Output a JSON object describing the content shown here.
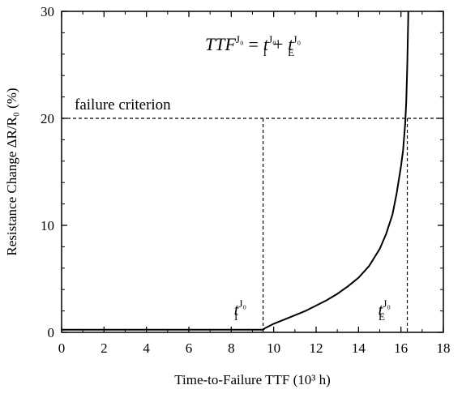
{
  "chart_data": {
    "type": "line",
    "xlabel": "Time-to-Failure TTF (10³ h)",
    "ylabel": "Resistance Change ΔR/R₀ (%)",
    "xlim": [
      0,
      18
    ],
    "ylim": [
      0,
      30
    ],
    "x_ticks": [
      0,
      2,
      4,
      6,
      8,
      10,
      12,
      14,
      16,
      18
    ],
    "y_ticks": [
      0,
      10,
      20,
      30
    ],
    "grid": false,
    "series": [
      {
        "x": [
          0,
          9.5,
          9.6,
          10.0,
          10.5,
          11.0,
          11.5,
          12.0,
          12.5,
          13.0,
          13.5,
          14.0,
          14.5,
          15.0,
          15.3,
          15.6,
          15.8,
          16.0,
          16.1,
          16.2,
          16.25,
          16.3,
          16.35
        ],
        "values": [
          0.25,
          0.25,
          0.4,
          0.8,
          1.2,
          1.6,
          2.0,
          2.5,
          3.0,
          3.6,
          4.3,
          5.1,
          6.2,
          7.8,
          9.2,
          11.0,
          13.0,
          15.5,
          17.0,
          19.5,
          21.5,
          25.0,
          30.0
        ]
      }
    ],
    "annotations": {
      "equation": {
        "lhs": "TTF",
        "sup": "J₀",
        "equals": "=",
        "t": "t",
        "sub_I": "I",
        "plus": "+",
        "sub_E": "E"
      },
      "criterion_label": "failure criterion",
      "criterion_value": 20,
      "t_I_x": 9.5,
      "t_E_x": 16.3,
      "t_I_label": {
        "base": "t",
        "sup": "J₀",
        "sub": "I"
      },
      "t_E_label": {
        "base": "t",
        "sup": "J₀",
        "sub": "E"
      }
    }
  }
}
